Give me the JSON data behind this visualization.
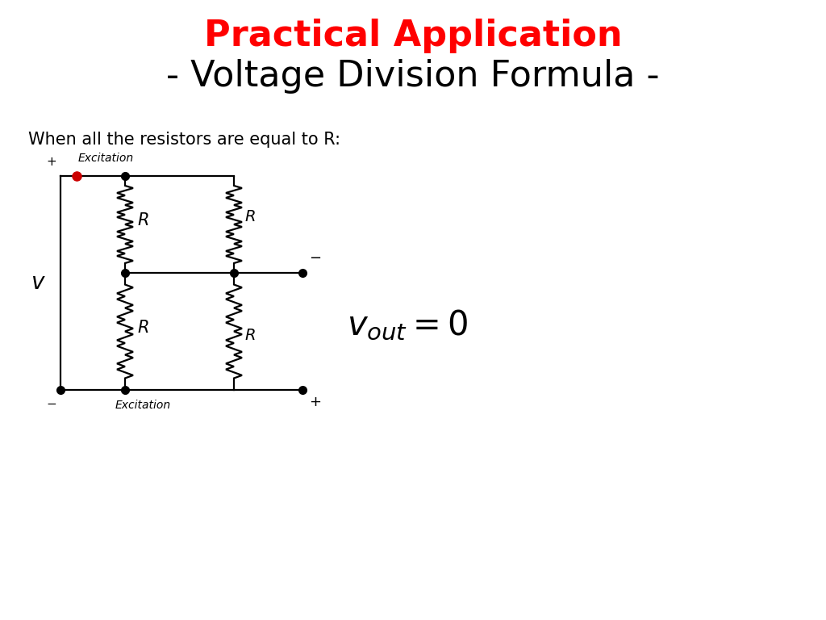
{
  "title_line1": "Practical Application",
  "title_line2": "- Voltage Division Formula -",
  "title_line1_color": "#FF0000",
  "title_line2_color": "#000000",
  "subtitle": "When all the resistors are equal to R:",
  "background_color": "#FFFFFF",
  "circuit_color": "#000000",
  "dot_color_red": "#CC0000",
  "dot_color_black": "#000000",
  "title_line1_fontsize": 32,
  "title_line2_fontsize": 32,
  "subtitle_fontsize": 15,
  "r_label_fontsize": 15,
  "formula_fontsize": 30
}
